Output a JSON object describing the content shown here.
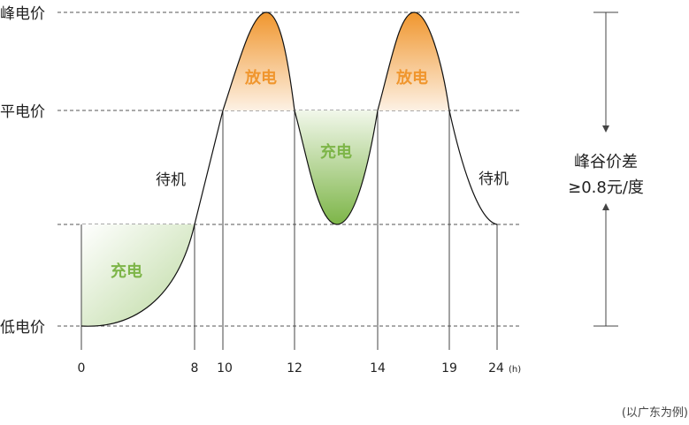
{
  "diagram": {
    "price_levels": {
      "peak": "峰电价",
      "flat": "平电价",
      "valley": "低电价"
    },
    "x_ticks": [
      "0",
      "8",
      "10",
      "12",
      "14",
      "19",
      "24"
    ],
    "x_unit": "(h)",
    "regions": {
      "discharge_1": "放电",
      "discharge_2": "放电",
      "charge_valley": "充电",
      "charge_low": "充电",
      "standby_left": "待机",
      "standby_right": "待机"
    },
    "side_note": {
      "line1": "峰谷价差",
      "line2": "≥0.8元/度"
    },
    "footnote": "(以广东为例)",
    "colors": {
      "discharge_text": "#f0962e",
      "charge_text": "#7db548",
      "discharge_fill_top": "#f0962e",
      "discharge_fill_bottom": "#fdf1e4",
      "charge_fill_bottom": "#7db548",
      "charge_fill_top": "#f1f7ea"
    }
  }
}
